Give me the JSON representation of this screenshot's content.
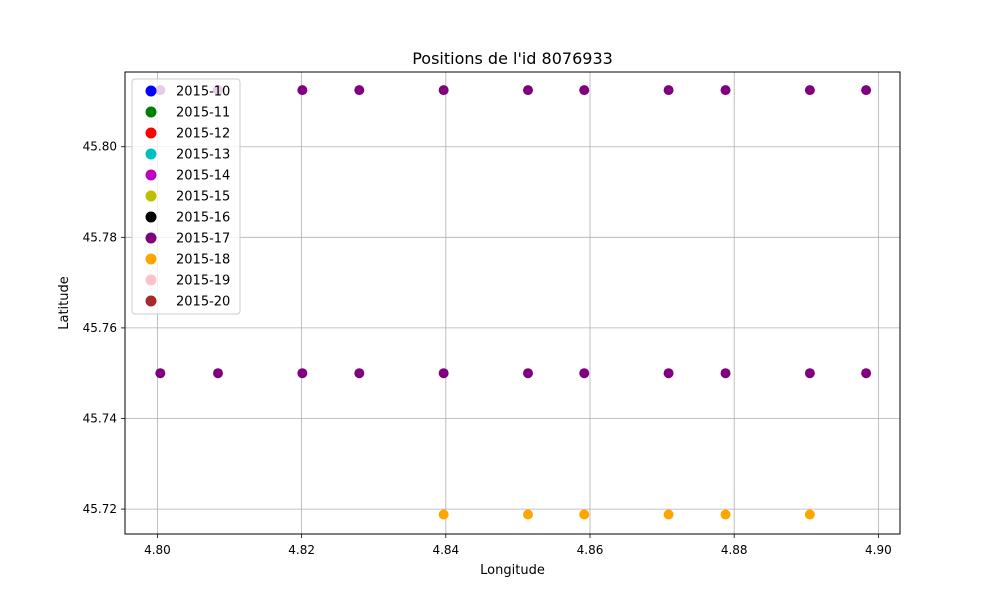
{
  "chart_data": {
    "type": "scatter",
    "title": "Positions de l'id 8076933",
    "xlabel": "Longitude",
    "ylabel": "Latitude",
    "xlim": [
      4.7955,
      4.903
    ],
    "ylim": [
      45.7145,
      45.8165
    ],
    "xticks": [
      4.8,
      4.82,
      4.84,
      4.86,
      4.88,
      4.9
    ],
    "xtick_labels": [
      "4.80",
      "4.82",
      "4.84",
      "4.86",
      "4.88",
      "4.90"
    ],
    "yticks": [
      45.72,
      45.74,
      45.76,
      45.78,
      45.8
    ],
    "ytick_labels": [
      "45.72",
      "45.74",
      "45.76",
      "45.78",
      "45.80"
    ],
    "grid": true,
    "legend_placement": "top-left",
    "series": [
      {
        "name": "2015-10",
        "color": "#0000ff",
        "points": []
      },
      {
        "name": "2015-11",
        "color": "#008000",
        "points": []
      },
      {
        "name": "2015-12",
        "color": "#ff0000",
        "points": []
      },
      {
        "name": "2015-13",
        "color": "#00bfbf",
        "points": []
      },
      {
        "name": "2015-14",
        "color": "#bf00bf",
        "points": []
      },
      {
        "name": "2015-15",
        "color": "#bfbf00",
        "points": []
      },
      {
        "name": "2015-16",
        "color": "#000000",
        "points": []
      },
      {
        "name": "2015-17",
        "color": "#800080",
        "points": [
          [
            4.8004,
            45.8125
          ],
          [
            4.8084,
            45.8125
          ],
          [
            4.8201,
            45.8125
          ],
          [
            4.828,
            45.8125
          ],
          [
            4.8397,
            45.8125
          ],
          [
            4.8514,
            45.8125
          ],
          [
            4.8592,
            45.8125
          ],
          [
            4.8709,
            45.8125
          ],
          [
            4.8788,
            45.8125
          ],
          [
            4.8905,
            45.8125
          ],
          [
            4.8983,
            45.8125
          ],
          [
            4.8004,
            45.75
          ],
          [
            4.8084,
            45.75
          ],
          [
            4.8201,
            45.75
          ],
          [
            4.828,
            45.75
          ],
          [
            4.8397,
            45.75
          ],
          [
            4.8514,
            45.75
          ],
          [
            4.8592,
            45.75
          ],
          [
            4.8709,
            45.75
          ],
          [
            4.8788,
            45.75
          ],
          [
            4.8905,
            45.75
          ],
          [
            4.8983,
            45.75
          ]
        ]
      },
      {
        "name": "2015-18",
        "color": "#ffa500",
        "points": [
          [
            4.8397,
            45.7188
          ],
          [
            4.8514,
            45.7188
          ],
          [
            4.8592,
            45.7188
          ],
          [
            4.8709,
            45.7188
          ],
          [
            4.8788,
            45.7188
          ],
          [
            4.8905,
            45.7188
          ]
        ]
      },
      {
        "name": "2015-19",
        "color": "#ffc0cb",
        "points": []
      },
      {
        "name": "2015-20",
        "color": "#a52a2a",
        "points": []
      }
    ]
  }
}
